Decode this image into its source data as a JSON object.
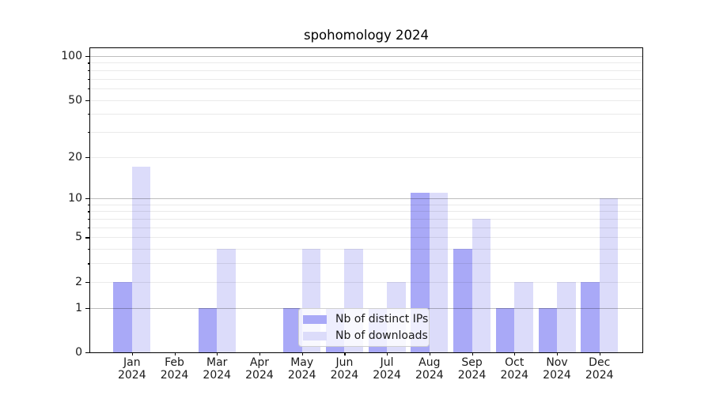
{
  "chart_data": {
    "type": "bar",
    "title": "spohomology 2024",
    "categories": [
      "Jan",
      "Feb",
      "Mar",
      "Apr",
      "May",
      "Jun",
      "Jul",
      "Aug",
      "Sep",
      "Oct",
      "Nov",
      "Dec"
    ],
    "category_year": "2024",
    "series": [
      {
        "name": "Nb of distinct IPs",
        "color": "#a9a9f7",
        "values": [
          2,
          0,
          1,
          0,
          1,
          1,
          1,
          11,
          4,
          1,
          1,
          2
        ]
      },
      {
        "name": "Nb of downloads",
        "color": "#dcdcfa",
        "values": [
          17,
          0,
          4,
          0,
          4,
          4,
          2,
          11,
          7,
          2,
          2,
          10
        ]
      }
    ],
    "yscale": "log1p",
    "yticks": [
      0,
      1,
      2,
      5,
      10,
      20,
      50,
      100
    ],
    "major_gridlines": [
      1,
      10,
      100
    ],
    "minor_gridlines": [
      2,
      3,
      4,
      5,
      6,
      7,
      8,
      9,
      20,
      30,
      40,
      50,
      60,
      70,
      80,
      90
    ],
    "ylim": [
      0,
      113
    ],
    "grid": true,
    "legend_position": "lower center",
    "colors": {
      "bar_distinct_ips": "#a9a9f7",
      "bar_downloads": "#dcdcfa",
      "major_grid": "#bfbfbf",
      "minor_grid": "#eaeaea",
      "axis": "#000000",
      "text": "#1a1a1a"
    }
  }
}
